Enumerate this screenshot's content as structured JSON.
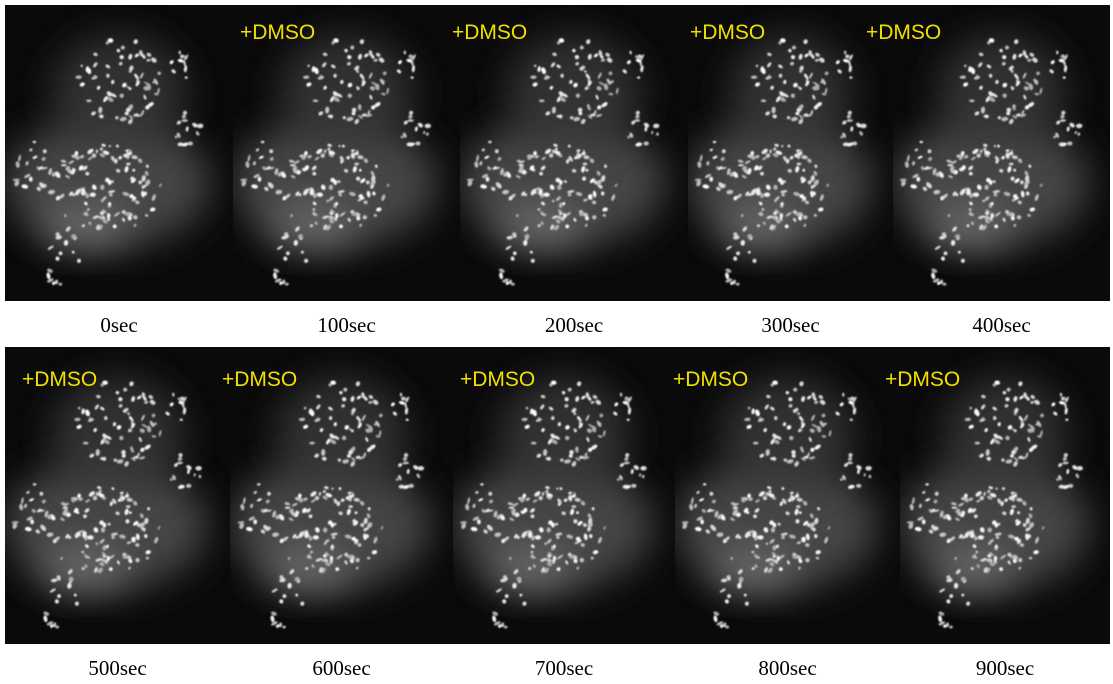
{
  "panels": [
    {
      "time": "0sec"
    },
    {
      "time": "100sec",
      "overlay": "+DMSO"
    },
    {
      "time": "200sec",
      "overlay": "+DMSO"
    },
    {
      "time": "300sec",
      "overlay": "+DMSO"
    },
    {
      "time": "400sec",
      "overlay": "+DMSO"
    },
    {
      "time": "500sec",
      "overlay": "+DMSO"
    },
    {
      "time": "600sec",
      "overlay": "+DMSO"
    },
    {
      "time": "700sec",
      "overlay": "+DMSO"
    },
    {
      "time": "800sec",
      "overlay": "+DMSO"
    },
    {
      "time": "900sec",
      "overlay": "+DMSO"
    }
  ]
}
